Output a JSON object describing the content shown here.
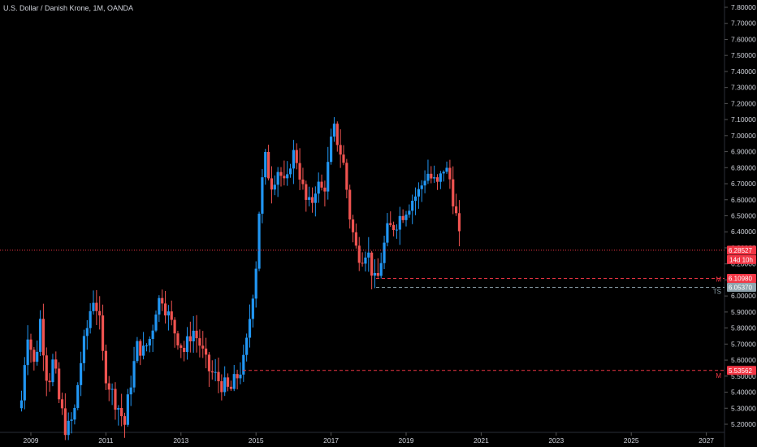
{
  "header": {
    "title": "U.S. Dollar / Danish Krone, 1M, OANDA"
  },
  "colors": {
    "up": "#2196f3",
    "down": "#ef5350",
    "bg": "#000000",
    "text": "#d1d4dc",
    "level": "#f23645",
    "ts": "#90a4ae",
    "axis_line": "#2a2e39"
  },
  "chart_data": {
    "type": "candlestick",
    "interval": "1M",
    "y_ticks": [
      7.8,
      7.7,
      7.6,
      7.5,
      7.4,
      7.3,
      7.2,
      7.1,
      7.0,
      6.9,
      6.8,
      6.7,
      6.6,
      6.5,
      6.4,
      6.3,
      6.2,
      6.1,
      6.0,
      5.9,
      5.8,
      5.7,
      5.6,
      5.5,
      5.4,
      5.3,
      5.2
    ],
    "y_tick_labels": [
      "7.80000",
      "7.70000",
      "7.60000",
      "7.50000",
      "7.40000",
      "7.30000",
      "7.20000",
      "7.10000",
      "7.00000",
      "6.90000",
      "6.80000",
      "6.70000",
      "6.60000",
      "6.50000",
      "6.40000",
      "6.30000",
      "6.20000",
      "6.10000",
      "6.00000",
      "5.90000",
      "5.80000",
      "5.70000",
      "5.60000",
      "5.50000",
      "5.40000",
      "5.30000",
      "5.20000"
    ],
    "x_ticks": [
      "2009",
      "2011",
      "2013",
      "2015",
      "2017",
      "2019",
      "2021",
      "2023",
      "2025",
      "2027"
    ],
    "x_tick_years": [
      2009,
      2011,
      2013,
      2015,
      2017,
      2019,
      2021,
      2023,
      2025,
      2027
    ],
    "ylim": [
      5.16,
      7.82
    ],
    "xlim_years": [
      2008.6,
      2027.3
    ],
    "levels": [
      {
        "value": 6.28527,
        "label": "6.28527",
        "sub": "14d 10h",
        "style": "dotted",
        "color": "#f23645",
        "full": true,
        "tag": ""
      },
      {
        "value": 6.1098,
        "label": "6.10980",
        "sub": "",
        "style": "dashed",
        "color": "#f23645",
        "start_year": 2018.2,
        "tag": "M"
      },
      {
        "value": 6.0537,
        "label": "6.05370",
        "sub": "",
        "style": "dashed",
        "color": "#90a4ae",
        "start_year": 2018.2,
        "tag": "TS"
      },
      {
        "value": 5.53562,
        "label": "5.53562",
        "sub": "",
        "style": "dashed",
        "color": "#f23645",
        "start_year": 2014.65,
        "tag": "M"
      }
    ],
    "anchors": [
      [
        2008.75,
        5.35
      ],
      [
        2008.9,
        5.8
      ],
      [
        2009.1,
        5.55
      ],
      [
        2009.25,
        5.85
      ],
      [
        2009.45,
        5.45
      ],
      [
        2009.6,
        5.6
      ],
      [
        2009.75,
        5.35
      ],
      [
        2009.95,
        5.15
      ],
      [
        2010.15,
        5.25
      ],
      [
        2010.3,
        5.55
      ],
      [
        2010.5,
        5.8
      ],
      [
        2010.65,
        6.0
      ],
      [
        2010.8,
        5.9
      ],
      [
        2010.95,
        5.55
      ],
      [
        2011.15,
        5.4
      ],
      [
        2011.35,
        5.3
      ],
      [
        2011.5,
        5.2
      ],
      [
        2011.65,
        5.45
      ],
      [
        2011.85,
        5.7
      ],
      [
        2012.0,
        5.65
      ],
      [
        2012.2,
        5.75
      ],
      [
        2012.35,
        5.95
      ],
      [
        2012.5,
        6.0
      ],
      [
        2012.7,
        5.85
      ],
      [
        2012.9,
        5.75
      ],
      [
        2013.1,
        5.65
      ],
      [
        2013.3,
        5.8
      ],
      [
        2013.5,
        5.7
      ],
      [
        2013.7,
        5.55
      ],
      [
        2013.9,
        5.5
      ],
      [
        2014.1,
        5.45
      ],
      [
        2014.3,
        5.4
      ],
      [
        2014.5,
        5.5
      ],
      [
        2014.7,
        5.6
      ],
      [
        2014.85,
        5.9
      ],
      [
        2015.0,
        6.2
      ],
      [
        2015.1,
        6.6
      ],
      [
        2015.25,
        6.85
      ],
      [
        2015.4,
        6.7
      ],
      [
        2015.6,
        6.8
      ],
      [
        2015.8,
        6.65
      ],
      [
        2015.95,
        6.9
      ],
      [
        2016.1,
        6.85
      ],
      [
        2016.3,
        6.6
      ],
      [
        2016.45,
        6.55
      ],
      [
        2016.6,
        6.7
      ],
      [
        2016.8,
        6.65
      ],
      [
        2016.95,
        6.85
      ],
      [
        2017.05,
        7.05
      ],
      [
        2017.2,
        6.95
      ],
      [
        2017.35,
        6.8
      ],
      [
        2017.5,
        6.5
      ],
      [
        2017.65,
        6.3
      ],
      [
        2017.8,
        6.25
      ],
      [
        2017.95,
        6.3
      ],
      [
        2018.1,
        6.15
      ],
      [
        2018.2,
        6.05
      ],
      [
        2018.35,
        6.25
      ],
      [
        2018.5,
        6.4
      ],
      [
        2018.7,
        6.45
      ],
      [
        2018.85,
        6.5
      ],
      [
        2019.0,
        6.55
      ],
      [
        2019.15,
        6.6
      ],
      [
        2019.35,
        6.65
      ],
      [
        2019.55,
        6.78
      ],
      [
        2019.7,
        6.72
      ],
      [
        2019.85,
        6.68
      ],
      [
        2020.0,
        6.8
      ],
      [
        2020.15,
        6.75
      ],
      [
        2020.3,
        6.55
      ],
      [
        2020.45,
        6.29
      ]
    ]
  }
}
